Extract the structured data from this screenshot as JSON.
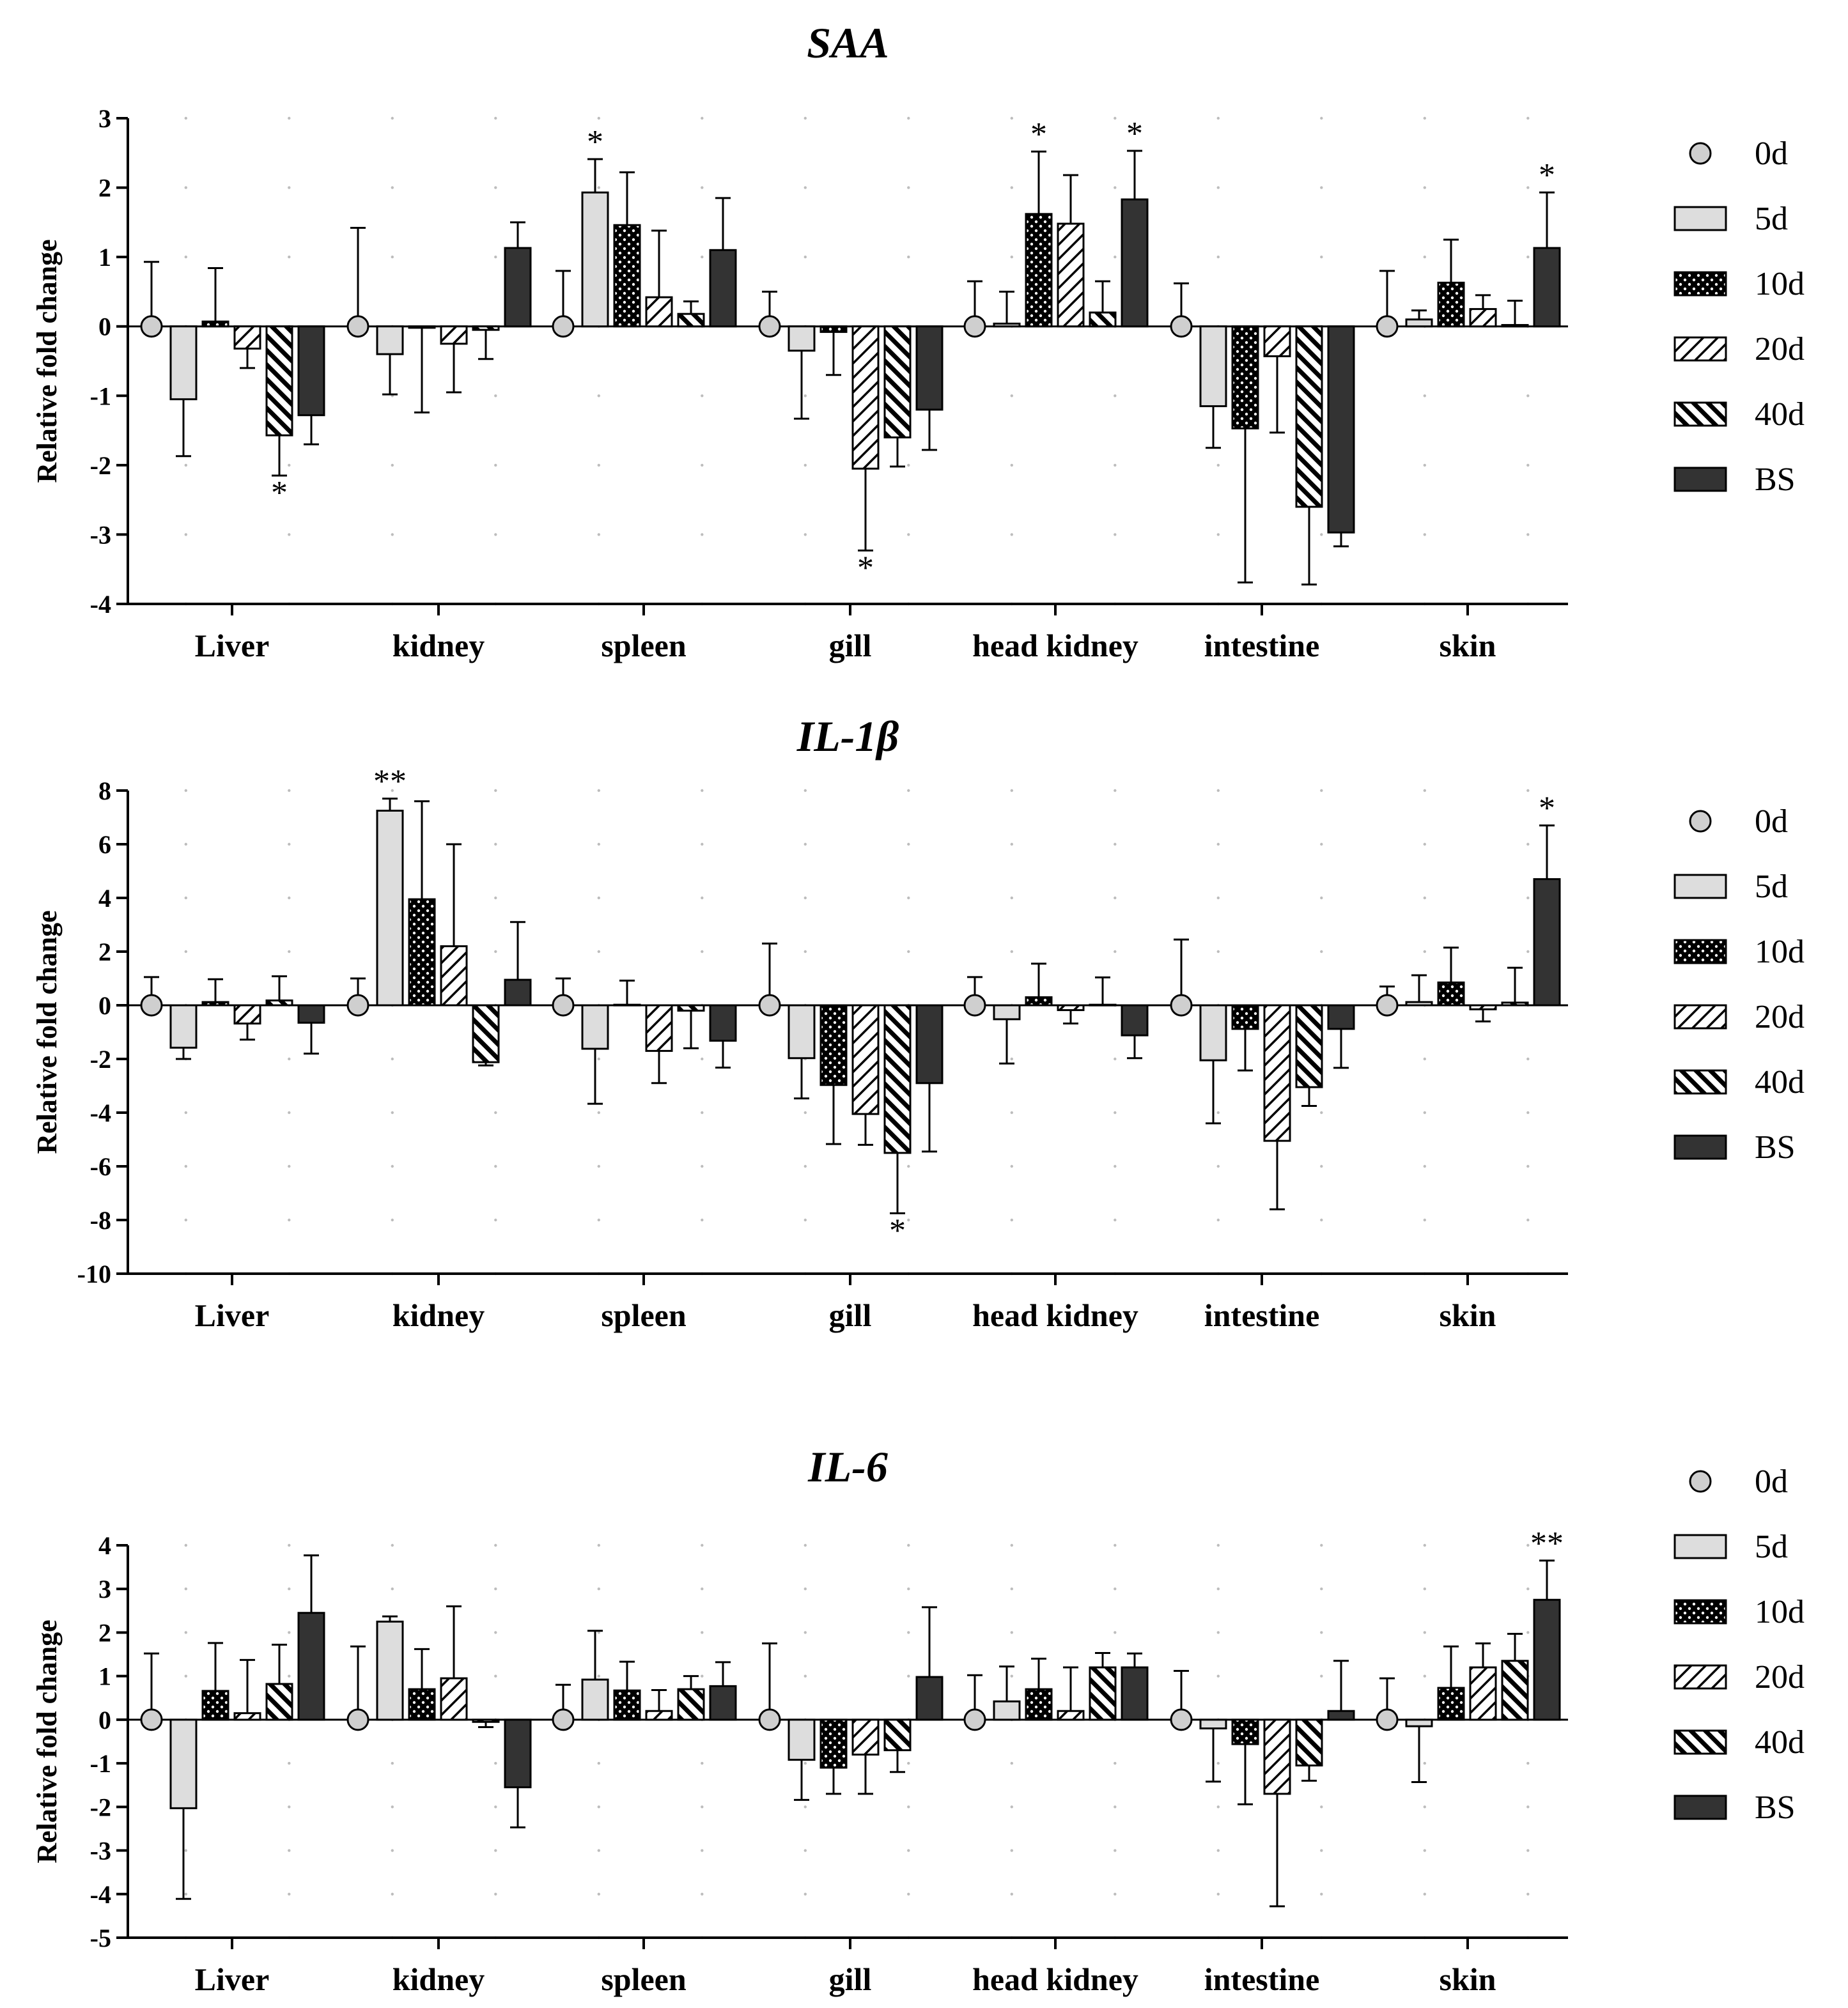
{
  "chart_data": [
    {
      "type": "bar",
      "title": "SAA",
      "ylabel": "Relative fold change",
      "ylim": [
        -4,
        3
      ],
      "yticks": [
        "3",
        "2",
        "1",
        "0",
        "-1",
        "-2",
        "-3",
        "-4"
      ],
      "categories": [
        "Liver",
        "kidney",
        "spleen",
        "gill",
        "head kidney",
        "intestine",
        "skin"
      ],
      "series": [
        {
          "name": "0d",
          "values": [
            0,
            0,
            0,
            0,
            0,
            0,
            0
          ],
          "errors": [
            0.93,
            1.42,
            0.8,
            0.5,
            0.65,
            0.62,
            0.8
          ]
        },
        {
          "name": "5d",
          "values": [
            -1.05,
            -0.4,
            1.93,
            -0.35,
            0.04,
            -1.15,
            0.1
          ],
          "errors": [
            0.82,
            0.58,
            0.48,
            0.98,
            0.46,
            0.6,
            0.13
          ]
        },
        {
          "name": "10d",
          "values": [
            0.07,
            -0.02,
            1.46,
            -0.08,
            1.62,
            -1.47,
            0.63
          ],
          "errors": [
            0.77,
            1.22,
            0.76,
            0.62,
            0.9,
            2.22,
            0.62
          ]
        },
        {
          "name": "20d",
          "values": [
            -0.32,
            -0.25,
            0.42,
            -2.05,
            1.48,
            -0.43,
            0.25
          ],
          "errors": [
            0.28,
            0.7,
            0.96,
            1.18,
            0.7,
            1.1,
            0.2
          ]
        },
        {
          "name": "40d",
          "values": [
            -1.57,
            -0.05,
            0.18,
            -1.6,
            0.2,
            -2.6,
            0.02
          ],
          "errors": [
            0.58,
            0.42,
            0.18,
            0.42,
            0.45,
            1.12,
            0.35
          ]
        },
        {
          "name": "BS",
          "values": [
            -1.28,
            1.13,
            1.1,
            -1.2,
            1.83,
            -2.97,
            1.13
          ],
          "errors": [
            0.42,
            0.37,
            0.75,
            0.58,
            0.7,
            0.2,
            0.8
          ]
        }
      ],
      "annotations": [
        {
          "category": "Liver",
          "series": "40d",
          "text": "*",
          "side": "below"
        },
        {
          "category": "spleen",
          "series": "5d",
          "text": "*",
          "side": "above"
        },
        {
          "category": "gill",
          "series": "20d",
          "text": "*",
          "side": "below"
        },
        {
          "category": "head kidney",
          "series": "10d",
          "text": "*",
          "side": "above"
        },
        {
          "category": "head kidney",
          "series": "BS",
          "text": "*",
          "side": "above"
        },
        {
          "category": "skin",
          "series": "BS",
          "text": "*",
          "side": "above"
        }
      ]
    },
    {
      "type": "bar",
      "title": "IL-1β",
      "ylabel": "Relative fold change",
      "ylim": [
        -10,
        8
      ],
      "yticks": [
        "8",
        "6",
        "4",
        "2",
        "0",
        "-2",
        "-4",
        "-6",
        "-8",
        "-10"
      ],
      "categories": [
        "Liver",
        "kidney",
        "spleen",
        "gill",
        "head kidney",
        "intestine",
        "skin"
      ],
      "series": [
        {
          "name": "0d",
          "values": [
            0,
            0,
            0,
            0,
            0,
            0,
            0
          ],
          "errors": [
            1.05,
            1.0,
            1.0,
            2.3,
            1.05,
            2.45,
            0.7
          ]
        },
        {
          "name": "5d",
          "values": [
            -1.58,
            7.25,
            -1.62,
            -1.97,
            -0.52,
            -2.05,
            0.12
          ],
          "errors": [
            0.42,
            0.45,
            2.05,
            1.5,
            1.65,
            2.35,
            1.0
          ]
        },
        {
          "name": "10d",
          "values": [
            0.12,
            3.95,
            0.02,
            -2.97,
            0.3,
            -0.88,
            0.85
          ],
          "errors": [
            0.85,
            3.65,
            0.9,
            2.2,
            1.25,
            1.55,
            1.3
          ]
        },
        {
          "name": "20d",
          "values": [
            -0.68,
            2.2,
            -1.7,
            -4.05,
            -0.18,
            -5.05,
            -0.15
          ],
          "errors": [
            0.6,
            3.8,
            1.2,
            1.15,
            0.5,
            2.55,
            0.45
          ]
        },
        {
          "name": "40d",
          "values": [
            0.18,
            -2.12,
            -0.2,
            -5.5,
            0.02,
            -3.05,
            0.1
          ],
          "errors": [
            0.9,
            0.12,
            1.4,
            2.25,
            1.02,
            0.7,
            1.3
          ]
        },
        {
          "name": "BS",
          "values": [
            -0.65,
            0.95,
            -1.32,
            -2.9,
            -1.12,
            -0.88,
            4.7
          ],
          "errors": [
            1.15,
            2.15,
            1.0,
            2.55,
            0.85,
            1.45,
            2.0
          ]
        }
      ],
      "annotations": [
        {
          "category": "kidney",
          "series": "5d",
          "text": "**",
          "side": "above"
        },
        {
          "category": "gill",
          "series": "40d",
          "text": "*",
          "side": "below"
        },
        {
          "category": "skin",
          "series": "BS",
          "text": "*",
          "side": "above"
        }
      ]
    },
    {
      "type": "bar",
      "title": "IL-6",
      "ylabel": "Relative fold change",
      "ylim": [
        -5,
        4
      ],
      "yticks": [
        "4",
        "3",
        "2",
        "1",
        "0",
        "-1",
        "-2",
        "-3",
        "-4",
        "-5"
      ],
      "categories": [
        "Liver",
        "kidney",
        "spleen",
        "gill",
        "head kidney",
        "intestine",
        "skin"
      ],
      "series": [
        {
          "name": "0d",
          "values": [
            0,
            0,
            0,
            0,
            0,
            0,
            0
          ],
          "errors": [
            1.52,
            1.68,
            0.8,
            1.75,
            1.02,
            1.12,
            0.95
          ]
        },
        {
          "name": "5d",
          "values": [
            -2.03,
            2.25,
            0.92,
            -0.92,
            0.42,
            -0.2,
            -0.15
          ],
          "errors": [
            2.08,
            0.12,
            1.12,
            0.92,
            0.8,
            1.22,
            1.28
          ]
        },
        {
          "name": "10d",
          "values": [
            0.66,
            0.7,
            0.67,
            -1.1,
            0.7,
            -0.56,
            0.73
          ],
          "errors": [
            1.1,
            0.92,
            0.66,
            0.6,
            0.7,
            1.38,
            0.95
          ]
        },
        {
          "name": "20d",
          "values": [
            0.15,
            0.95,
            0.2,
            -0.8,
            0.2,
            -1.7,
            1.2
          ],
          "errors": [
            1.22,
            1.65,
            0.48,
            0.9,
            1.0,
            2.58,
            0.55
          ]
        },
        {
          "name": "40d",
          "values": [
            0.82,
            -0.05,
            0.7,
            -0.7,
            1.2,
            -1.05,
            1.35
          ],
          "errors": [
            0.9,
            0.12,
            0.3,
            0.5,
            0.33,
            0.35,
            0.62
          ]
        },
        {
          "name": "BS",
          "values": [
            2.45,
            -1.55,
            0.77,
            0.98,
            1.2,
            0.2,
            2.75
          ],
          "errors": [
            1.32,
            0.92,
            0.55,
            1.6,
            0.32,
            1.15,
            0.9
          ]
        }
      ],
      "annotations": [
        {
          "category": "skin",
          "series": "BS",
          "text": "**",
          "side": "above"
        }
      ]
    }
  ],
  "legend": [
    "0d",
    "5d",
    "10d",
    "20d",
    "40d",
    "BS"
  ],
  "colors": {
    "circle": "#cfcfcf",
    "light_bar": "#dddddd",
    "dark_bar": "#333333",
    "ink": "#000000"
  }
}
